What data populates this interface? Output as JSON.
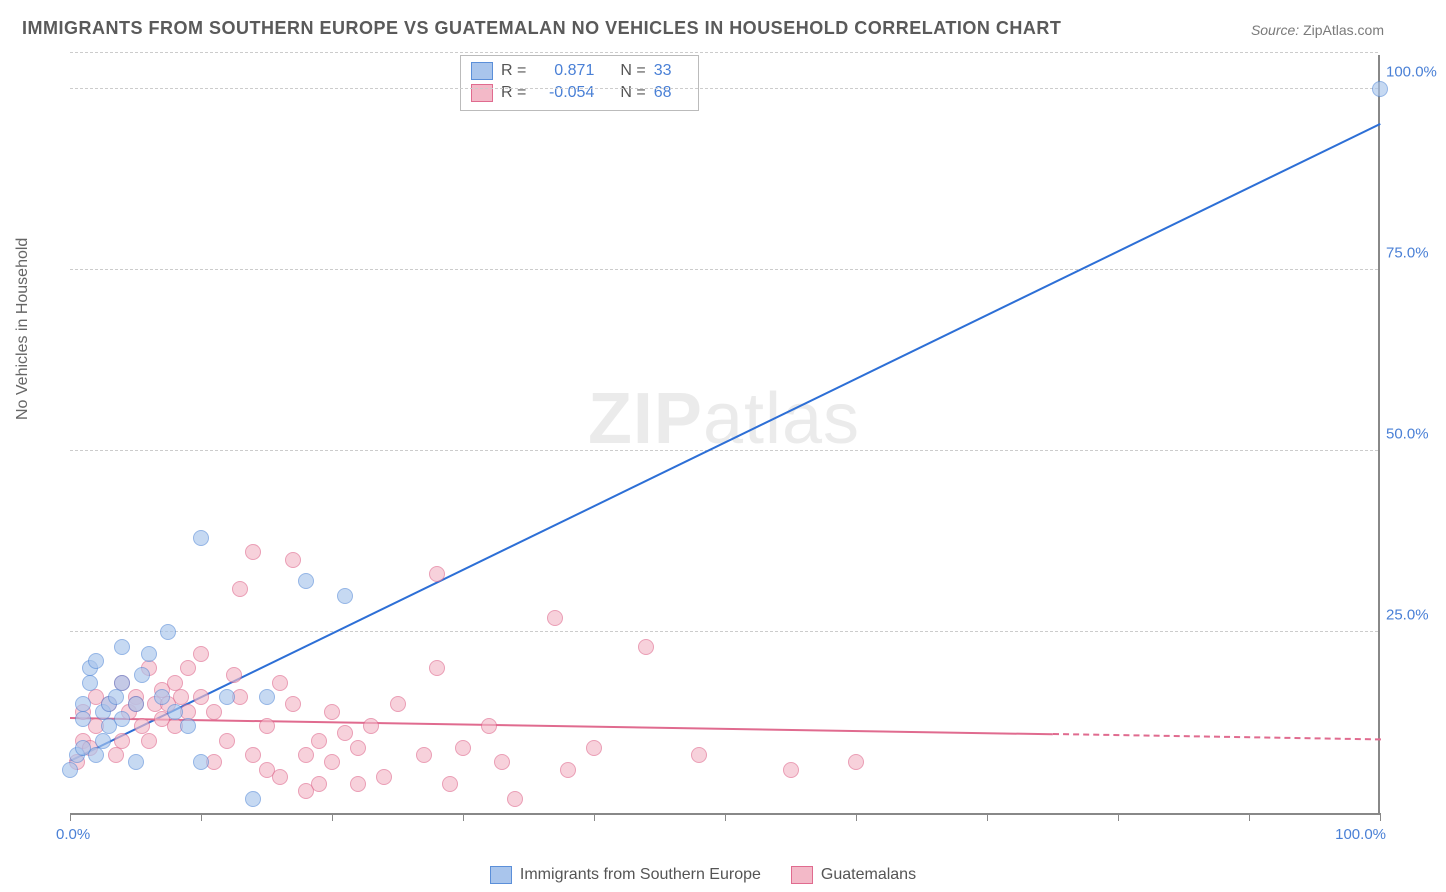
{
  "title": "IMMIGRANTS FROM SOUTHERN EUROPE VS GUATEMALAN NO VEHICLES IN HOUSEHOLD CORRELATION CHART",
  "source_label": "Source:",
  "source_value": "ZipAtlas.com",
  "ylabel": "No Vehicles in Household",
  "watermark_bold": "ZIP",
  "watermark_rest": "atlas",
  "chart": {
    "type": "scatter-correlation",
    "xlim": [
      0,
      100
    ],
    "ylim": [
      0,
      105
    ],
    "x_tick_step": 10,
    "x_tick_labels": {
      "0": "0.0%",
      "100": "100.0%"
    },
    "y_ticks": [
      25,
      50,
      75,
      100
    ],
    "y_tick_labels": {
      "25": "25.0%",
      "50": "50.0%",
      "75": "75.0%",
      "100": "100.0%"
    },
    "grid_color": "#cccccc",
    "axis_color": "#888888",
    "background_color": "#ffffff",
    "point_radius": 8,
    "series": [
      {
        "name": "Immigrants from Southern Europe",
        "fill": "#a9c5ec",
        "stroke": "#5b8fd9",
        "fill_opacity": 0.65,
        "trend": {
          "color": "#2d6fd6",
          "x1": 0,
          "y1": 7,
          "x2": 100,
          "y2": 95,
          "solid_until_x": 100
        },
        "stats": {
          "r_label": "R =",
          "r": "0.871",
          "n_label": "N =",
          "n": "33"
        },
        "points": [
          [
            0,
            6
          ],
          [
            0.5,
            8
          ],
          [
            1,
            9
          ],
          [
            1,
            13
          ],
          [
            1,
            15
          ],
          [
            1.5,
            18
          ],
          [
            1.5,
            20
          ],
          [
            2,
            21
          ],
          [
            2,
            8
          ],
          [
            2.5,
            10
          ],
          [
            2.5,
            14
          ],
          [
            3,
            12
          ],
          [
            3,
            15
          ],
          [
            3.5,
            16
          ],
          [
            4,
            13
          ],
          [
            4,
            18
          ],
          [
            4,
            23
          ],
          [
            5,
            7
          ],
          [
            5,
            15
          ],
          [
            5.5,
            19
          ],
          [
            6,
            22
          ],
          [
            7,
            16
          ],
          [
            7.5,
            25
          ],
          [
            8,
            14
          ],
          [
            9,
            12
          ],
          [
            10,
            7
          ],
          [
            10,
            38
          ],
          [
            12,
            16
          ],
          [
            14,
            2
          ],
          [
            15,
            16
          ],
          [
            18,
            32
          ],
          [
            21,
            30
          ],
          [
            100,
            100
          ]
        ]
      },
      {
        "name": "Guatemalans",
        "fill": "#f3b9c8",
        "stroke": "#e06b8f",
        "fill_opacity": 0.65,
        "trend": {
          "color": "#e06b8f",
          "x1": 0,
          "y1": 13,
          "x2": 100,
          "y2": 10,
          "solid_until_x": 75
        },
        "stats": {
          "r_label": "R =",
          "r": "-0.054",
          "n_label": "N =",
          "n": "68"
        },
        "points": [
          [
            0.5,
            7
          ],
          [
            1,
            10
          ],
          [
            1,
            14
          ],
          [
            1.5,
            9
          ],
          [
            2,
            16
          ],
          [
            2,
            12
          ],
          [
            3,
            15
          ],
          [
            3.5,
            8
          ],
          [
            4,
            18
          ],
          [
            4,
            10
          ],
          [
            4.5,
            14
          ],
          [
            5,
            16
          ],
          [
            5,
            15
          ],
          [
            5.5,
            12
          ],
          [
            6,
            20
          ],
          [
            6,
            10
          ],
          [
            6.5,
            15
          ],
          [
            7,
            13
          ],
          [
            7,
            17
          ],
          [
            7.5,
            15
          ],
          [
            8,
            18
          ],
          [
            8,
            12
          ],
          [
            8.5,
            16
          ],
          [
            9,
            20
          ],
          [
            9,
            14
          ],
          [
            10,
            16
          ],
          [
            10,
            22
          ],
          [
            11,
            7
          ],
          [
            11,
            14
          ],
          [
            12,
            10
          ],
          [
            12.5,
            19
          ],
          [
            13,
            31
          ],
          [
            13,
            16
          ],
          [
            14,
            8
          ],
          [
            14,
            36
          ],
          [
            15,
            6
          ],
          [
            15,
            12
          ],
          [
            16,
            18
          ],
          [
            16,
            5
          ],
          [
            17,
            35
          ],
          [
            17,
            15
          ],
          [
            18,
            3
          ],
          [
            18,
            8
          ],
          [
            19,
            10
          ],
          [
            19,
            4
          ],
          [
            20,
            14
          ],
          [
            20,
            7
          ],
          [
            21,
            11
          ],
          [
            22,
            4
          ],
          [
            22,
            9
          ],
          [
            23,
            12
          ],
          [
            24,
            5
          ],
          [
            25,
            15
          ],
          [
            27,
            8
          ],
          [
            28,
            33
          ],
          [
            28,
            20
          ],
          [
            29,
            4
          ],
          [
            30,
            9
          ],
          [
            32,
            12
          ],
          [
            33,
            7
          ],
          [
            34,
            2
          ],
          [
            37,
            27
          ],
          [
            38,
            6
          ],
          [
            40,
            9
          ],
          [
            44,
            23
          ],
          [
            48,
            8
          ],
          [
            55,
            6
          ],
          [
            60,
            7
          ]
        ]
      }
    ]
  },
  "legend_series1": "Immigrants from Southern Europe",
  "legend_series2": "Guatemalans"
}
